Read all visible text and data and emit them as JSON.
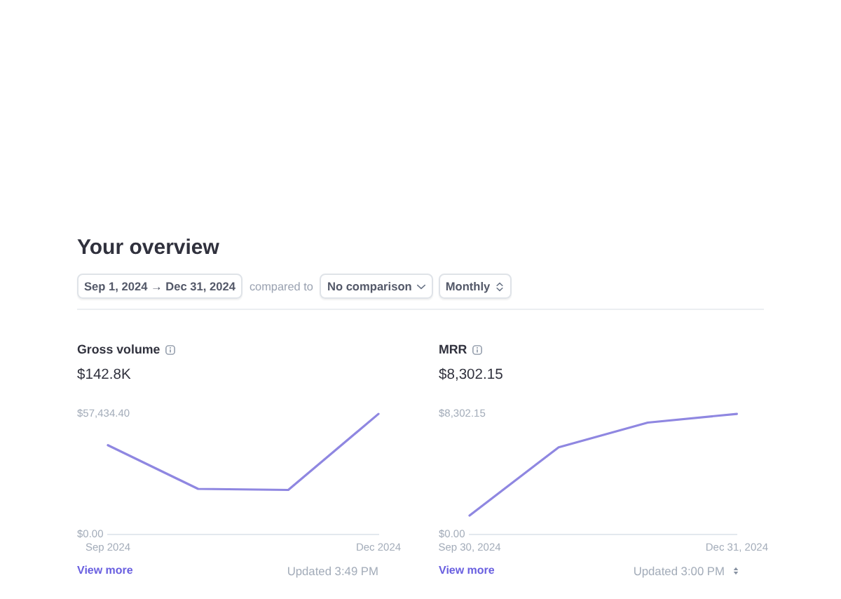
{
  "chart_data": [
    {
      "type": "other",
      "title": "Your overview",
      "annotations": [
        "Sep 1, 2024 → Dec 31, 2024",
        "compared to",
        "No comparison",
        "Monthly"
      ]
    },
    {
      "type": "line",
      "title": "Gross volume",
      "subtitle": "$142.8K",
      "categories": [
        "Sep 2024",
        null,
        null,
        "Dec 2024"
      ],
      "values": [
        42500,
        21700,
        21200,
        57400
      ],
      "color": "#8f87e1",
      "ylim": [
        0,
        57434.4
      ],
      "yticks": [
        {
          "value": 0,
          "label": "$0.00"
        },
        {
          "value": 57434.4,
          "label": "$57,434.40"
        }
      ],
      "annotations": [
        "View more",
        "Updated 3:49 PM"
      ]
    },
    {
      "type": "line",
      "title": "MRR",
      "subtitle": "$8,302.15",
      "categories": [
        "Sep 30, 2024",
        null,
        null,
        "Dec 31, 2024"
      ],
      "values": [
        1300,
        6000,
        7700,
        8300
      ],
      "color": "#8f87e1",
      "ylim": [
        0,
        8302.15
      ],
      "yticks": [
        {
          "value": 0,
          "label": "$0.00"
        },
        {
          "value": 8302.15,
          "label": "$8,302.15"
        }
      ],
      "annotations": [
        "View more",
        "Updated 3:00 PM"
      ]
    }
  ]
}
